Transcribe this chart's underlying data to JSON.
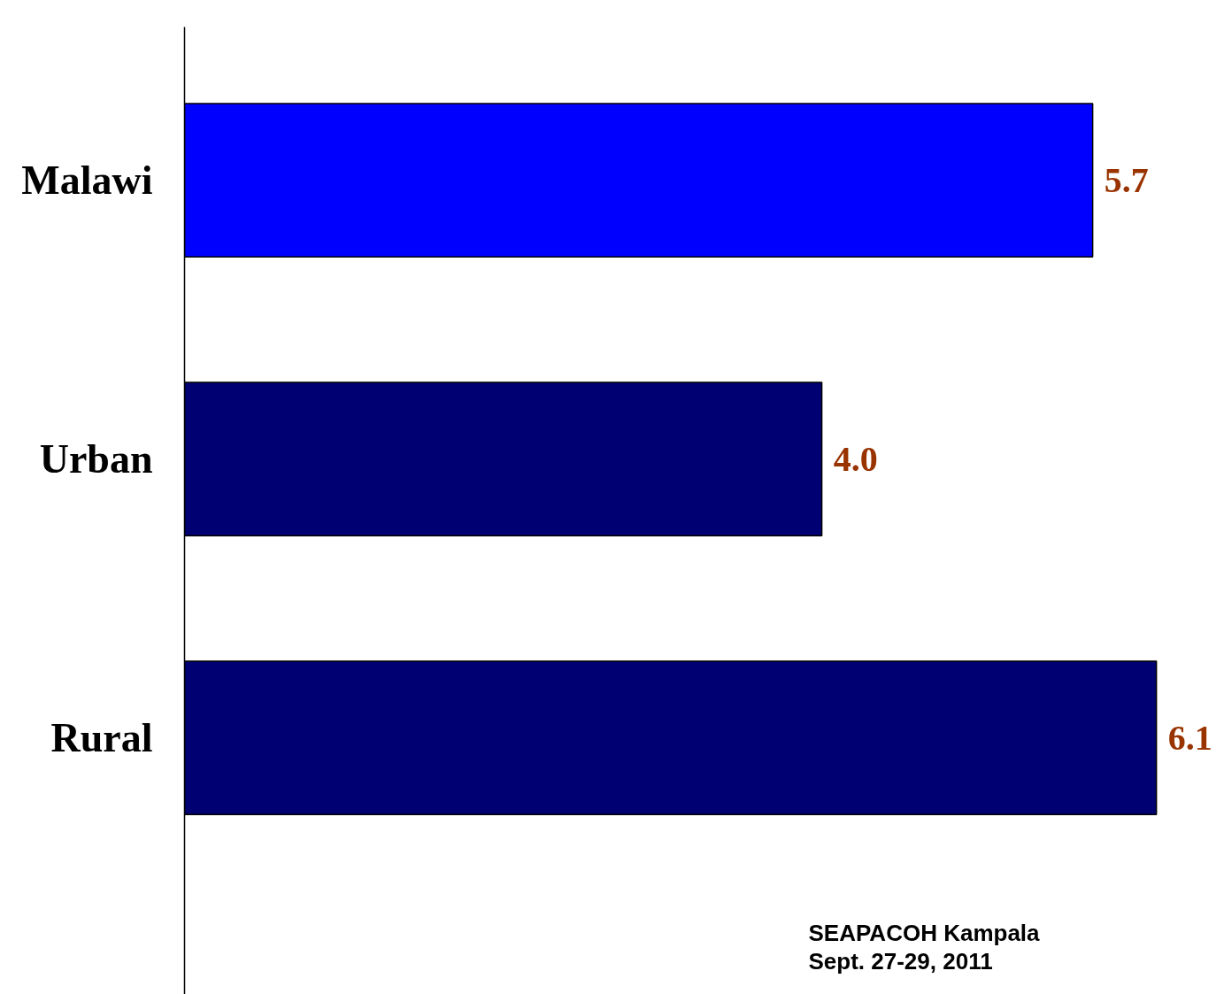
{
  "chart_data": {
    "type": "bar",
    "orientation": "horizontal",
    "categories": [
      "Malawi",
      "Urban",
      "Rural"
    ],
    "values": [
      5.7,
      4.0,
      6.1
    ],
    "colors": [
      "#0000ff",
      "#000073",
      "#000073"
    ],
    "value_labels": [
      "5.7",
      "4.0",
      "6.1"
    ],
    "grid": false,
    "annotations": [
      "SEAPACOH Kampala",
      "Sept. 27-29, 2011"
    ]
  }
}
